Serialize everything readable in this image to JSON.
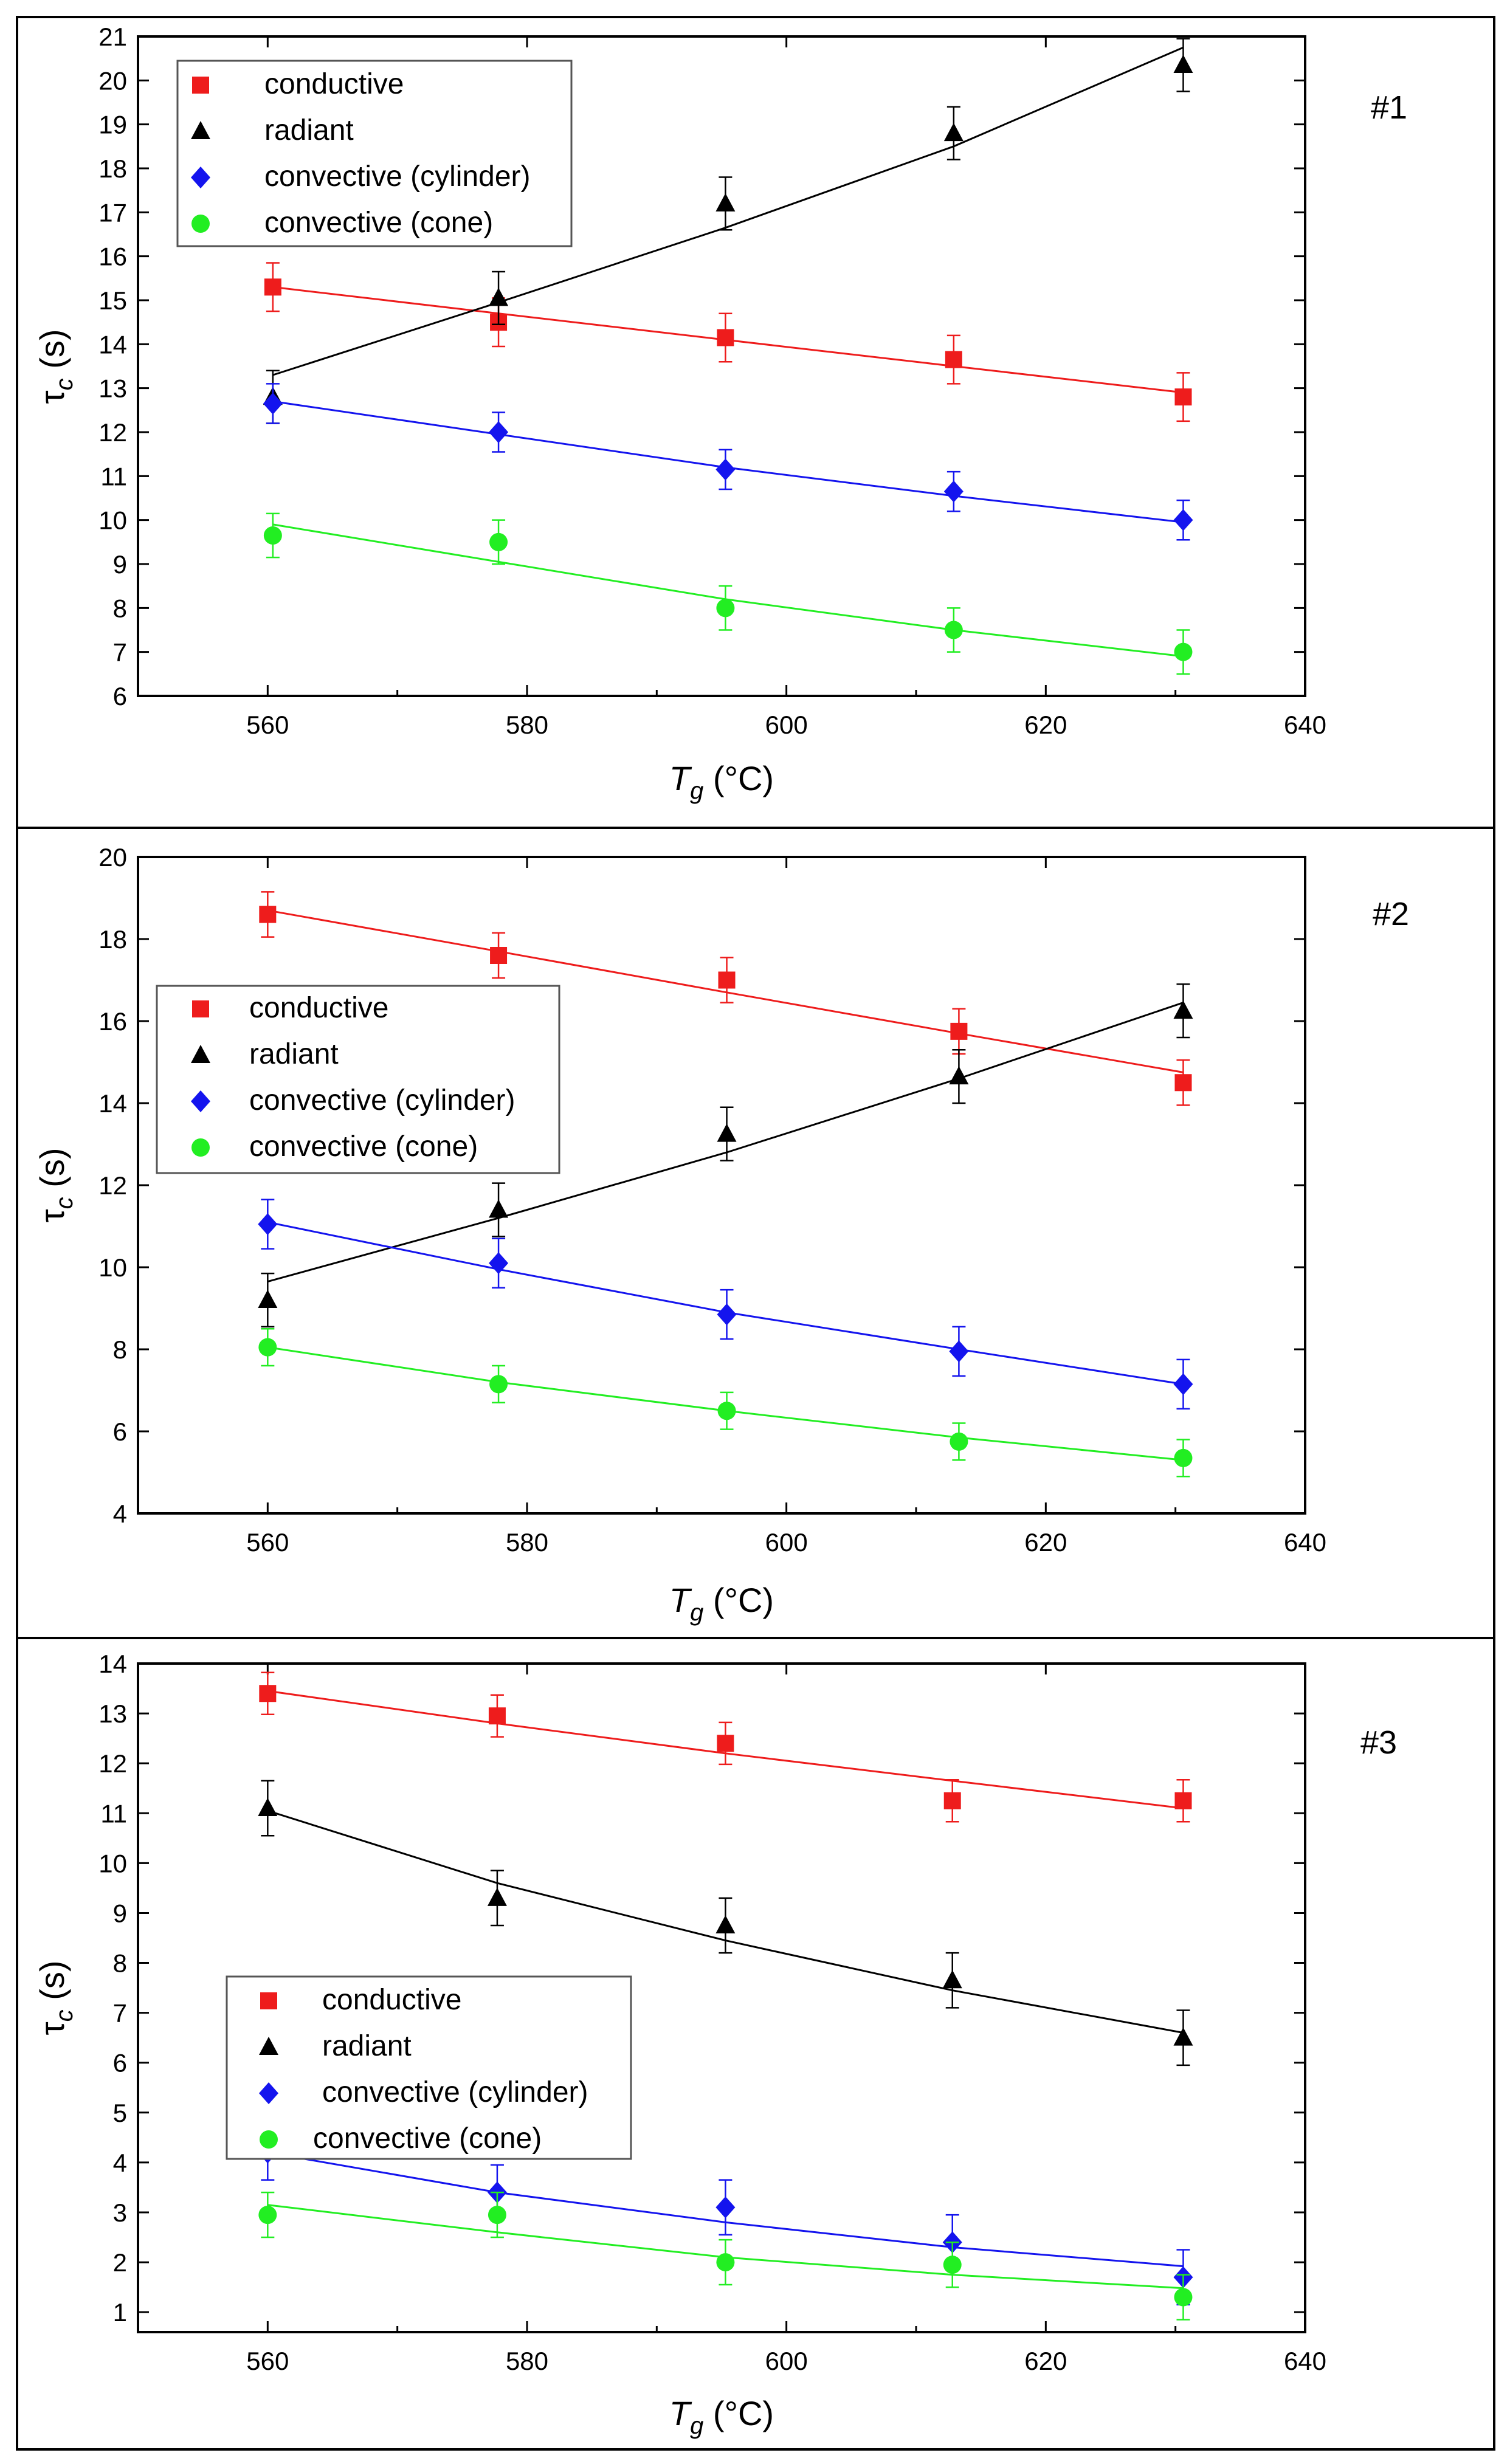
{
  "colors": {
    "conductive": "#ee1c1c",
    "radiant": "#000000",
    "convective_cylinder": "#1414ee",
    "convective_cone": "#22ee22",
    "frame": "#000000"
  },
  "chart_data": [
    {
      "type": "scatter",
      "panel_label": "#1",
      "xlabel": "T",
      "xlabel_sub": "g",
      "xlabel_unit": " (°C)",
      "ylabel": "τ",
      "ylabel_sub": "c",
      "ylabel_unit": " (s)",
      "xlim": [
        550,
        640
      ],
      "ylim": [
        6,
        21
      ],
      "xticks": [
        560,
        580,
        600,
        620,
        640
      ],
      "yticks": [
        6,
        7,
        8,
        9,
        10,
        11,
        12,
        13,
        14,
        15,
        16,
        17,
        18,
        19,
        20,
        21
      ],
      "grid": false,
      "legend_position": "top-left",
      "x": [
        560.4,
        577.8,
        595.3,
        612.9,
        630.6
      ],
      "series": [
        {
          "name": "conductive",
          "marker": "square",
          "values": [
            15.3,
            14.5,
            14.15,
            13.65,
            12.8
          ],
          "errors": [
            0.55,
            0.55,
            0.55,
            0.55,
            0.55
          ],
          "fit": [
            15.3,
            14.7,
            14.1,
            13.5,
            12.9
          ]
        },
        {
          "name": "radiant",
          "marker": "triangle",
          "values": [
            12.8,
            15.05,
            17.2,
            18.8,
            20.35
          ],
          "errors": [
            0.6,
            0.6,
            0.6,
            0.6,
            0.6
          ],
          "fit": [
            13.3,
            14.95,
            16.65,
            18.5,
            20.75
          ]
        },
        {
          "name": "convective (cylinder)",
          "marker": "diamond",
          "values": [
            12.65,
            12.0,
            11.15,
            10.65,
            10.0
          ],
          "errors": [
            0.45,
            0.45,
            0.45,
            0.45,
            0.45
          ],
          "fit": [
            12.7,
            11.95,
            11.2,
            10.55,
            9.95
          ]
        },
        {
          "name": "convective (cone)",
          "marker": "circle",
          "values": [
            9.65,
            9.5,
            8.0,
            7.5,
            7.0
          ],
          "errors": [
            0.5,
            0.5,
            0.5,
            0.5,
            0.5
          ],
          "fit": [
            9.9,
            9.05,
            8.2,
            7.5,
            6.9
          ]
        }
      ]
    },
    {
      "type": "scatter",
      "panel_label": "#2",
      "xlabel": "T",
      "xlabel_sub": "g",
      "xlabel_unit": " (°C)",
      "ylabel": "τ",
      "ylabel_sub": "c",
      "ylabel_unit": " (s)",
      "xlim": [
        550,
        640
      ],
      "ylim": [
        4,
        20
      ],
      "xticks": [
        560,
        580,
        600,
        620,
        640
      ],
      "yticks": [
        4,
        6,
        8,
        10,
        12,
        14,
        16,
        18,
        20
      ],
      "grid": false,
      "legend_position": "middle-left",
      "x": [
        560.0,
        577.8,
        595.4,
        613.3,
        630.6
      ],
      "series": [
        {
          "name": "conductive",
          "marker": "square",
          "values": [
            18.6,
            17.6,
            17.0,
            15.75,
            14.5
          ],
          "errors": [
            0.55,
            0.55,
            0.55,
            0.55,
            0.55
          ],
          "fit": [
            18.7,
            17.7,
            16.7,
            15.7,
            14.75
          ]
        },
        {
          "name": "radiant",
          "marker": "triangle",
          "values": [
            9.2,
            11.4,
            13.25,
            14.65,
            16.25
          ],
          "errors": [
            0.65,
            0.65,
            0.65,
            0.65,
            0.65
          ],
          "fit": [
            9.65,
            11.2,
            12.8,
            14.6,
            16.45
          ]
        },
        {
          "name": "convective (cylinder)",
          "marker": "diamond",
          "values": [
            11.05,
            10.1,
            8.85,
            7.95,
            7.15
          ],
          "errors": [
            0.6,
            0.6,
            0.6,
            0.6,
            0.6
          ],
          "fit": [
            11.1,
            9.95,
            8.9,
            8.0,
            7.15
          ]
        },
        {
          "name": "convective (cone)",
          "marker": "circle",
          "values": [
            8.05,
            7.15,
            6.5,
            5.75,
            5.35
          ],
          "errors": [
            0.45,
            0.45,
            0.45,
            0.45,
            0.45
          ],
          "fit": [
            8.05,
            7.2,
            6.5,
            5.85,
            5.3
          ]
        }
      ]
    },
    {
      "type": "scatter",
      "panel_label": "#3",
      "xlabel": "T",
      "xlabel_sub": "g",
      "xlabel_unit": " (°C)",
      "ylabel": "τ",
      "ylabel_sub": "c",
      "ylabel_unit": " (s)",
      "xlim": [
        550,
        640
      ],
      "ylim": [
        0.6,
        14
      ],
      "xticks": [
        560,
        580,
        600,
        620,
        640
      ],
      "yticks": [
        1,
        2,
        3,
        4,
        5,
        6,
        7,
        8,
        9,
        10,
        11,
        12,
        13,
        14
      ],
      "grid": false,
      "legend_position": "lower-left",
      "x": [
        560.0,
        577.7,
        595.3,
        612.8,
        630.6
      ],
      "series": [
        {
          "name": "conductive",
          "marker": "square",
          "values": [
            13.4,
            12.95,
            12.4,
            11.25,
            11.25
          ],
          "errors": [
            0.42,
            0.42,
            0.42,
            0.42,
            0.42
          ],
          "fit": [
            13.45,
            12.8,
            12.2,
            11.65,
            11.1
          ]
        },
        {
          "name": "radiant",
          "marker": "triangle",
          "values": [
            11.1,
            9.3,
            8.75,
            7.65,
            6.5
          ],
          "errors": [
            0.55,
            0.55,
            0.55,
            0.55,
            0.55
          ],
          "fit": [
            11.05,
            9.6,
            8.45,
            7.45,
            6.6
          ]
        },
        {
          "name": "convective (cylinder)",
          "marker": "diamond",
          "values": [
            4.2,
            3.4,
            3.1,
            2.4,
            1.7
          ],
          "errors": [
            0.55,
            0.55,
            0.55,
            0.55,
            0.55
          ],
          "fit": [
            4.2,
            3.4,
            2.8,
            2.3,
            1.92
          ]
        },
        {
          "name": "convective (cone)",
          "marker": "circle",
          "values": [
            2.95,
            2.95,
            2.0,
            1.95,
            1.3
          ],
          "errors": [
            0.45,
            0.45,
            0.45,
            0.45,
            0.45
          ],
          "fit": [
            3.15,
            2.6,
            2.1,
            1.75,
            1.48
          ]
        }
      ]
    }
  ]
}
